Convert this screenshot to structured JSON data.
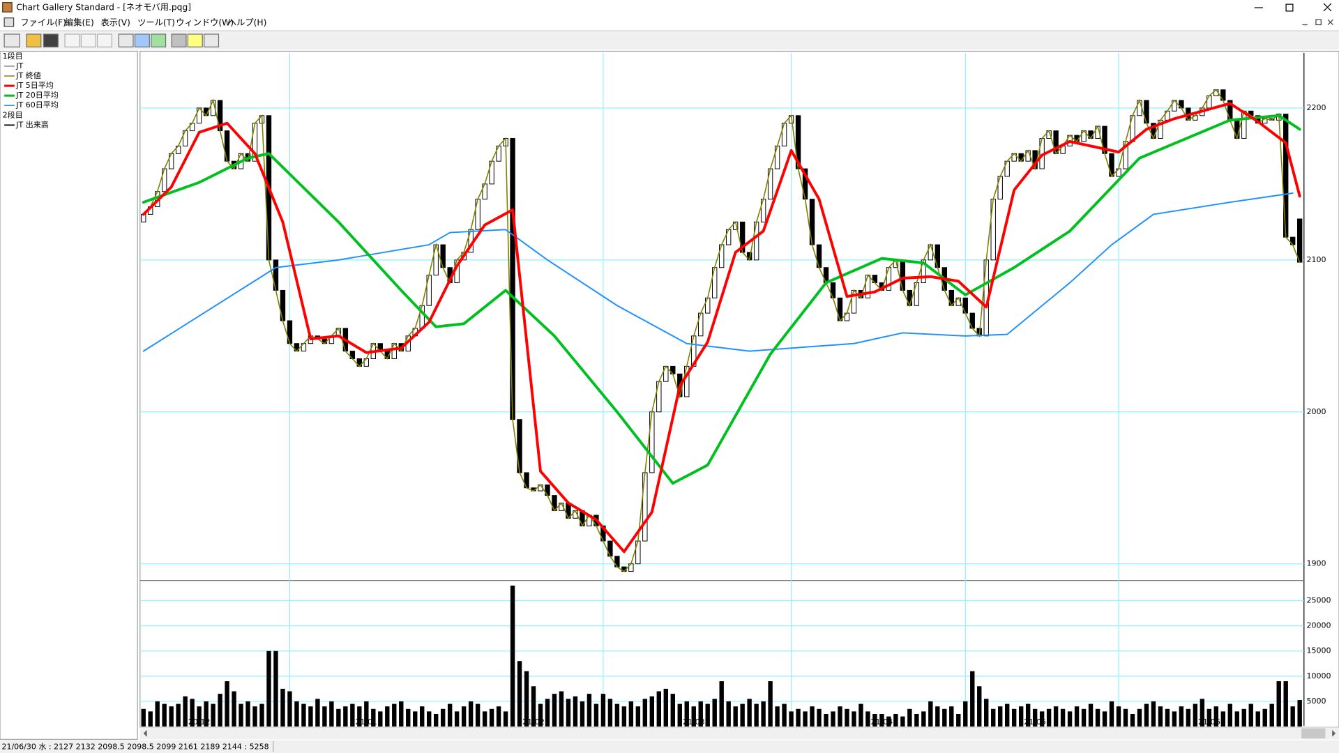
{
  "window": {
    "title": "Chart Gallery Standard - [ネオモバ用.pqg]",
    "menu": [
      "ファイル(F)",
      "編集(E)",
      "表示(V)",
      "ツール(T)",
      "ウィンドウ(W)",
      "ヘルプ(H)"
    ]
  },
  "legend_groups": [
    "1段目",
    "2段目"
  ],
  "status_bar": "21/06/30 水 : 2127 2132 2098.5 2098.5  2099 2161 2189 2144 : 5258",
  "chart_data": {
    "type": "candlestick",
    "ylim": [
      1889,
      2234
    ],
    "yticks": [
      1900,
      2000,
      2100,
      2200
    ],
    "xlim": [
      0,
      166
    ],
    "xticks": [
      {
        "value": 8,
        "label": "20/12"
      },
      {
        "value": 32,
        "label": "21/01"
      },
      {
        "value": 56,
        "label": "21/02"
      },
      {
        "value": 79,
        "label": "21/03"
      },
      {
        "value": 106,
        "label": "21/04"
      },
      {
        "value": 128,
        "label": "21/05"
      },
      {
        "value": 153,
        "label": "21/06"
      }
    ],
    "xgrid": [
      21,
      66,
      93,
      118,
      140
    ],
    "grid": true,
    "series": [
      {
        "name": "JT",
        "color": "#000000",
        "open": [
          2125,
          2130,
          2135,
          2145,
          2160,
          2170,
          2175,
          2185,
          2190,
          2200,
          2195,
          2205,
          2185,
          2165,
          2160,
          2170,
          2165,
          2190,
          2195,
          2100,
          2080,
          2060,
          2045,
          2040,
          2045,
          2050,
          2048,
          2045,
          2050,
          2055,
          2040,
          2035,
          2030,
          2035,
          2045,
          2040,
          2035,
          2045,
          2040,
          2050,
          2055,
          2070,
          2090,
          2110,
          2095,
          2085,
          2100,
          2105,
          2120,
          2140,
          2150,
          2165,
          2175,
          2180,
          1995,
          1960,
          1950,
          1948,
          1952,
          1945,
          1935,
          1940,
          1930,
          1935,
          1925,
          1932,
          1925,
          1915,
          1905,
          1898,
          1895,
          1900,
          1915,
          1960,
          2000,
          2020,
          2030,
          2025,
          2010,
          2030,
          2050,
          2065,
          2075,
          2095,
          2110,
          2120,
          2125,
          2105,
          2100,
          2125,
          2140,
          2160,
          2175,
          2190,
          2195,
          2160,
          2140,
          2110,
          2095,
          2085,
          2075,
          2060,
          2065,
          2080,
          2075,
          2090,
          2085,
          2080,
          2095,
          2100,
          2080,
          2070,
          2085,
          2100,
          2110,
          2095,
          2080,
          2070,
          2075,
          2065,
          2055,
          2050,
          2100,
          2140,
          2155,
          2165,
          2170,
          2165,
          2172,
          2160,
          2180,
          2185,
          2170,
          2175,
          2182,
          2178,
          2185,
          2180,
          2188,
          2170,
          2155,
          2160,
          2178,
          2195,
          2205,
          2190,
          2180,
          2192,
          2198,
          2205,
          2200,
          2192,
          2195,
          2200,
          2208,
          2212,
          2205,
          2192,
          2180,
          2198,
          2195,
          2190,
          2193,
          2192,
          2196,
          2115,
          2127
        ],
        "close": [
          2130,
          2135,
          2145,
          2160,
          2170,
          2175,
          2185,
          2190,
          2200,
          2195,
          2205,
          2185,
          2165,
          2160,
          2170,
          2165,
          2190,
          2195,
          2100,
          2080,
          2060,
          2045,
          2040,
          2045,
          2050,
          2048,
          2045,
          2050,
          2055,
          2040,
          2035,
          2030,
          2035,
          2045,
          2040,
          2035,
          2045,
          2040,
          2050,
          2055,
          2070,
          2090,
          2110,
          2095,
          2085,
          2100,
          2105,
          2120,
          2140,
          2150,
          2165,
          2175,
          2180,
          1995,
          1960,
          1950,
          1948,
          1952,
          1945,
          1935,
          1940,
          1930,
          1935,
          1925,
          1932,
          1925,
          1915,
          1905,
          1898,
          1895,
          1900,
          1915,
          1960,
          2000,
          2020,
          2030,
          2025,
          2010,
          2030,
          2050,
          2065,
          2075,
          2095,
          2110,
          2120,
          2125,
          2105,
          2100,
          2125,
          2140,
          2160,
          2175,
          2190,
          2195,
          2160,
          2140,
          2110,
          2095,
          2085,
          2075,
          2060,
          2065,
          2080,
          2075,
          2090,
          2085,
          2080,
          2095,
          2100,
          2080,
          2070,
          2085,
          2100,
          2110,
          2095,
          2080,
          2070,
          2075,
          2065,
          2055,
          2050,
          2100,
          2140,
          2155,
          2165,
          2170,
          2165,
          2172,
          2160,
          2180,
          2185,
          2170,
          2175,
          2182,
          2178,
          2185,
          2180,
          2188,
          2170,
          2155,
          2160,
          2178,
          2195,
          2205,
          2190,
          2180,
          2192,
          2198,
          2205,
          2200,
          2192,
          2195,
          2200,
          2208,
          2212,
          2205,
          2192,
          2180,
          2198,
          2195,
          2190,
          2193,
          2192,
          2196,
          2115,
          2110,
          2098.5
        ]
      },
      {
        "name": "JT 終値",
        "color": "#808000"
      },
      {
        "name": "JT 5日平均",
        "color": "#ff0000",
        "x": [
          0,
          4,
          8,
          12,
          16,
          20,
          24,
          28,
          32,
          37,
          41,
          45,
          49,
          53,
          57,
          61,
          65,
          69,
          73,
          77,
          81,
          85,
          89,
          93,
          97,
          101,
          105,
          109,
          113,
          117,
          121,
          125,
          129,
          133,
          140,
          144,
          148,
          152,
          156,
          160,
          164,
          166
        ],
        "values": [
          2130,
          2148,
          2184,
          2190,
          2170,
          2125,
          2048,
          2050,
          2039,
          2042,
          2059,
          2096,
          2123,
          2133,
          1961,
          1940,
          1929,
          1908,
          1934,
          2017,
          2046,
          2105,
          2119,
          2172,
          2140,
          2076,
          2079,
          2088,
          2089,
          2086,
          2069,
          2146,
          2169,
          2178,
          2171,
          2186,
          2193,
          2198,
          2203,
          2191,
          2177,
          2142
        ]
      },
      {
        "name": "JT 20日平均",
        "color": "#00c020",
        "x": [
          0,
          8,
          15,
          18,
          28,
          37,
          42,
          46,
          52,
          59,
          68,
          76,
          81,
          90,
          98,
          106,
          112,
          118,
          125,
          133,
          143,
          156,
          163,
          166
        ],
        "values": [
          2138,
          2151,
          2167,
          2170,
          2125,
          2080,
          2056,
          2058,
          2080,
          2050,
          2000,
          1953,
          1965,
          2038,
          2085,
          2101,
          2098,
          2077,
          2095,
          2119,
          2167,
          2192,
          2195,
          2186
        ]
      },
      {
        "name": "JT 60日平均",
        "color": "#1e90ff",
        "x": [
          0,
          19,
          28,
          41,
          44,
          52,
          58,
          68,
          78,
          87,
          102,
          109,
          118,
          124,
          133,
          139,
          145,
          156,
          165
        ],
        "values": [
          2040,
          2095,
          2100,
          2110,
          2118,
          2120,
          2100,
          2070,
          2045,
          2040,
          2045,
          2052,
          2050,
          2051,
          2085,
          2110,
          2130,
          2138,
          2144
        ]
      }
    ],
    "volume": {
      "name": "JT 出来高",
      "color": "#000000",
      "ylim": [
        0,
        29000
      ],
      "yticks": [
        5000,
        10000,
        15000,
        20000,
        25000
      ],
      "values": [
        3500,
        3000,
        5000,
        4500,
        4000,
        4500,
        6000,
        5500,
        4000,
        5000,
        4500,
        6500,
        9000,
        7000,
        4500,
        5000,
        4000,
        4500,
        15000,
        15000,
        7500,
        7000,
        5000,
        4500,
        4000,
        5500,
        4000,
        5000,
        3500,
        4000,
        4500,
        4000,
        5000,
        3500,
        3000,
        4000,
        4500,
        5000,
        3500,
        3000,
        4000,
        3000,
        2500,
        3500,
        4500,
        3000,
        4000,
        5000,
        4500,
        3000,
        3500,
        4000,
        3000,
        28000,
        13000,
        11000,
        8000,
        4500,
        5500,
        6500,
        7000,
        5500,
        6000,
        5000,
        6500,
        4500,
        6500,
        5500,
        4500,
        4000,
        5000,
        4000,
        5500,
        6000,
        7000,
        7500,
        6500,
        4500,
        5000,
        4000,
        5000,
        4500,
        5500,
        9000,
        5000,
        4000,
        4500,
        5500,
        4500,
        5000,
        9000,
        4000,
        4500,
        3000,
        3500,
        3000,
        4000,
        3500,
        2500,
        3000,
        4000,
        3500,
        3000,
        4500,
        3000,
        2500,
        2500,
        2000,
        2500,
        2000,
        3500,
        2500,
        3000,
        5000,
        4000,
        3500,
        4000,
        2500,
        5000,
        11000,
        8000,
        5500,
        3500,
        4000,
        4500,
        3500,
        4000,
        4500,
        3500,
        3000,
        3500,
        4000,
        3500,
        3000,
        4000,
        3500,
        4500,
        3500,
        3000,
        5000,
        4000,
        3500,
        2500,
        3500,
        4500,
        5000,
        4000,
        3500,
        3000,
        4000,
        3500,
        4500,
        5500,
        3500,
        4000,
        3000,
        4500,
        3000,
        3500,
        4500,
        3000,
        3500,
        4500,
        9000,
        9000,
        4000,
        5258
      ]
    }
  }
}
